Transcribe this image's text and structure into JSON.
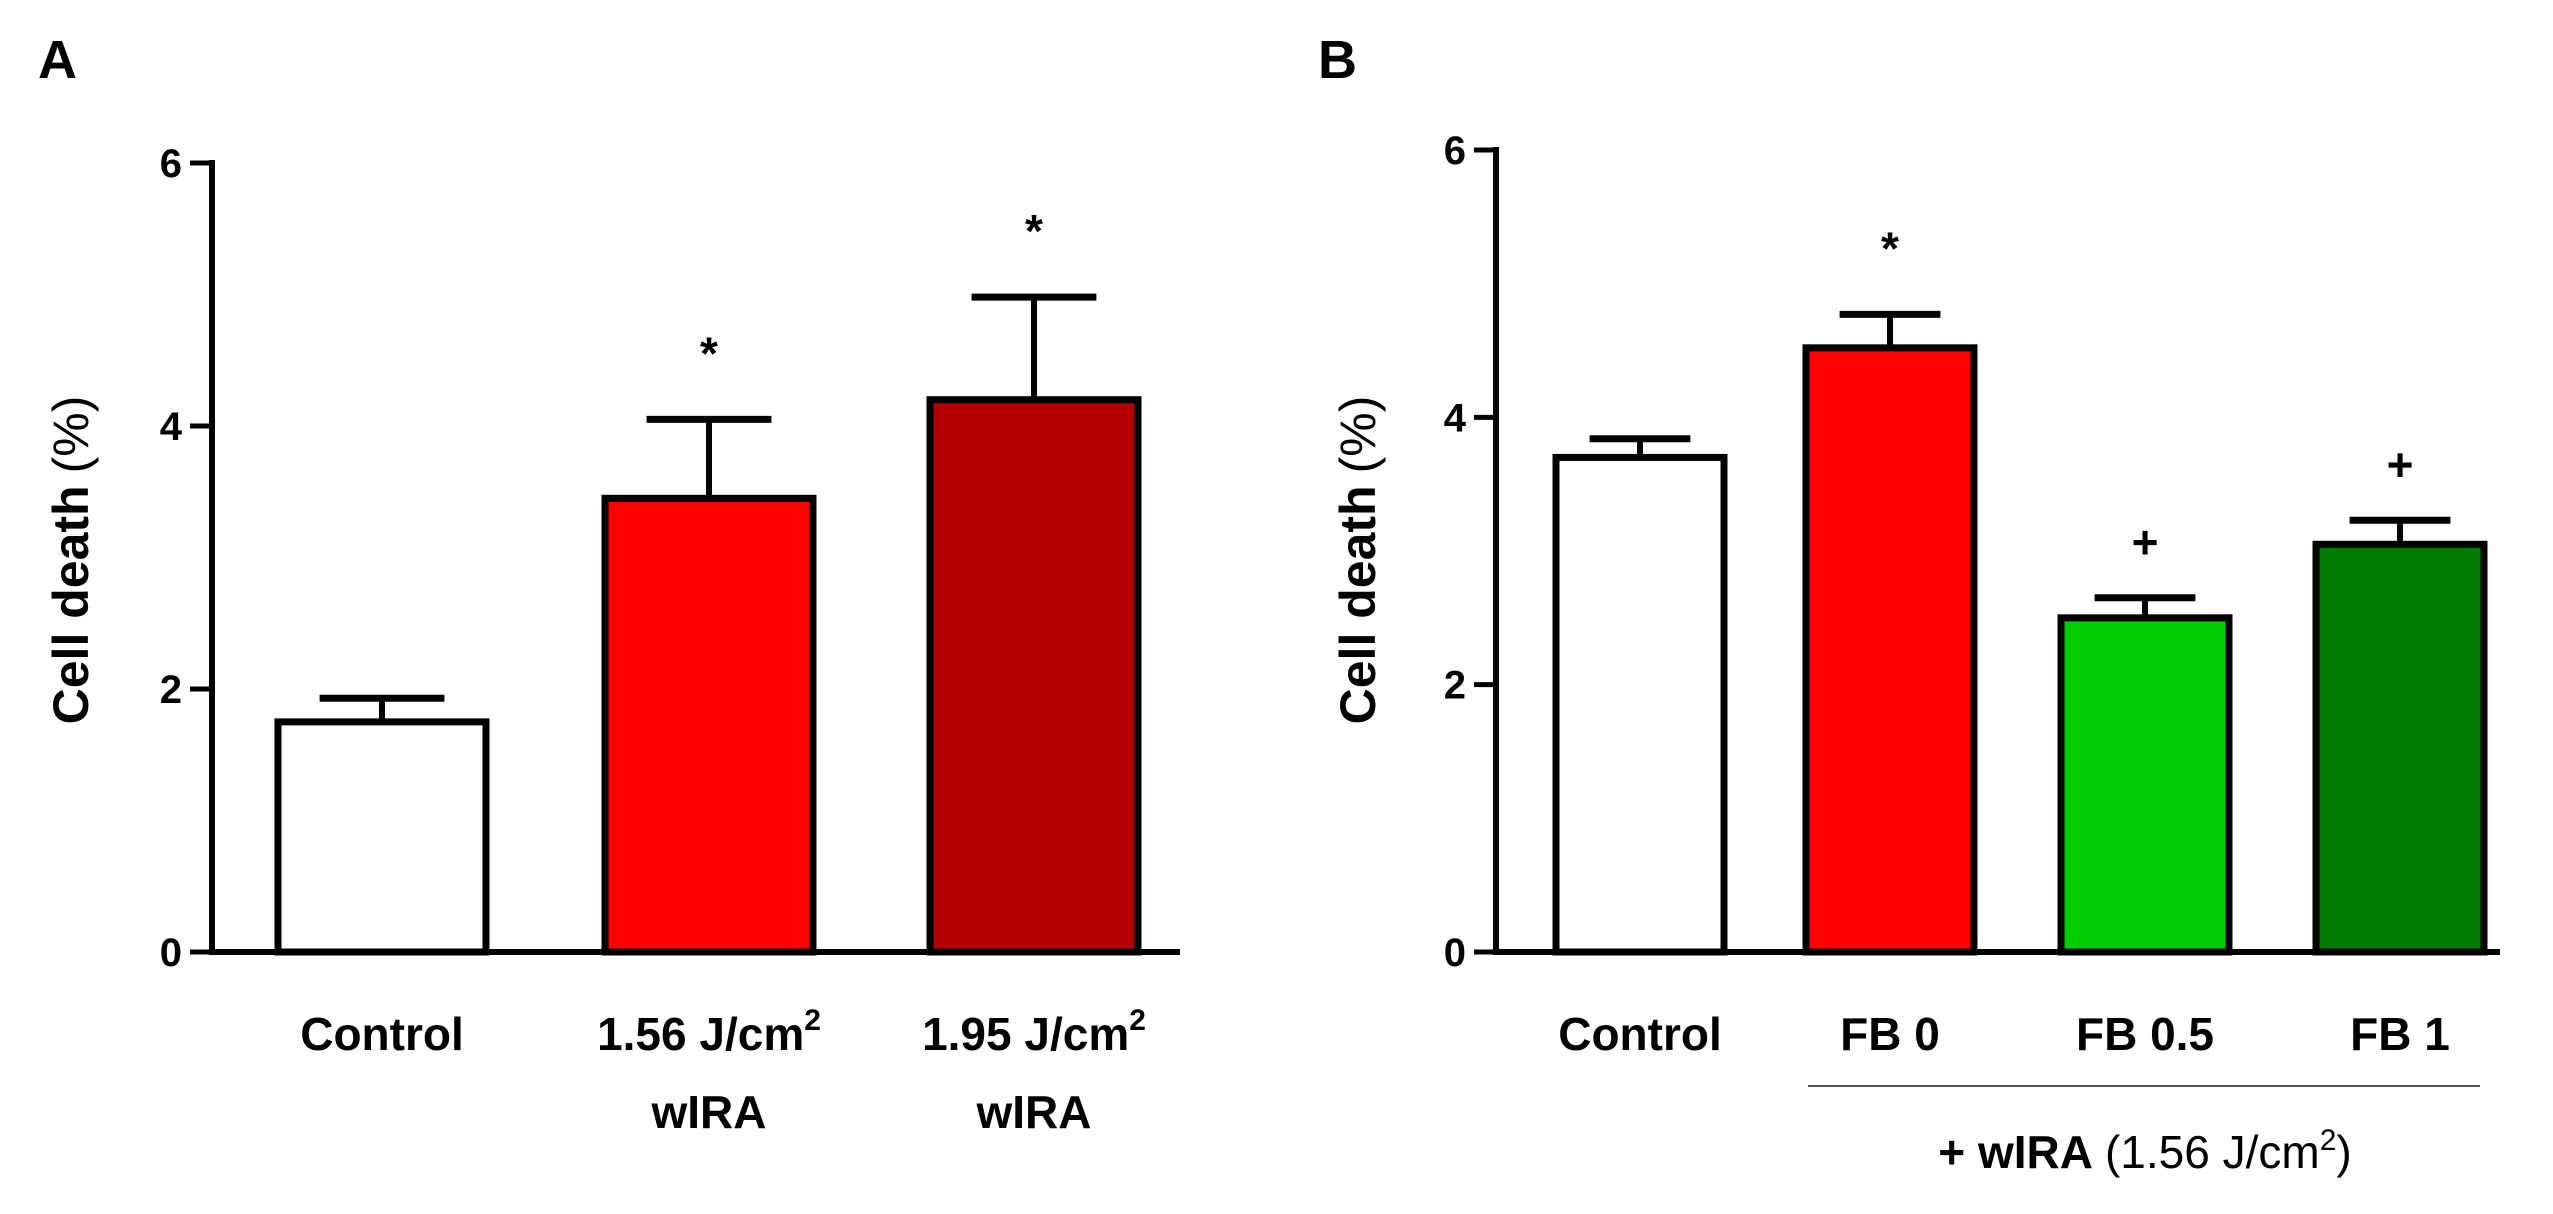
{
  "chart_data": [
    {
      "panel": "A",
      "type": "bar",
      "ylabel": "Cell death",
      "ylabel_unit": "(%)",
      "ylim": [
        0,
        6
      ],
      "yticks": [
        0,
        2,
        4,
        6
      ],
      "categories": [
        {
          "line1": "Control",
          "line2": ""
        },
        {
          "line1": "1.56 J/cm",
          "sup": "2",
          "line2": "wIRA"
        },
        {
          "line1": "1.95 J/cm",
          "sup": "2",
          "line2": "wIRA"
        }
      ],
      "values": [
        1.75,
        3.45,
        4.2
      ],
      "errors": [
        0.18,
        0.6,
        0.78
      ],
      "colors": [
        "#ffffff",
        "#ff0000",
        "#b40000"
      ],
      "annotations": [
        "",
        "*",
        "*"
      ]
    },
    {
      "panel": "B",
      "type": "bar",
      "ylabel": "Cell death",
      "ylabel_unit": "(%)",
      "ylim": [
        0,
        6
      ],
      "yticks": [
        0,
        2,
        4,
        6
      ],
      "categories": [
        {
          "line1": "Control"
        },
        {
          "line1": "FB 0"
        },
        {
          "line1": "FB 0.5"
        },
        {
          "line1": "FB 1"
        }
      ],
      "values": [
        3.7,
        4.52,
        2.5,
        3.05
      ],
      "errors": [
        0.14,
        0.25,
        0.15,
        0.18
      ],
      "colors": [
        "#ffffff",
        "#ff0000",
        "#00cc00",
        "#007a00"
      ],
      "annotations": [
        "",
        "*",
        "+",
        "+"
      ],
      "group_label": {
        "bold": "+ wIRA",
        "normal": "(1.56 J/cm",
        "sup": "2",
        "close": ")"
      }
    }
  ]
}
